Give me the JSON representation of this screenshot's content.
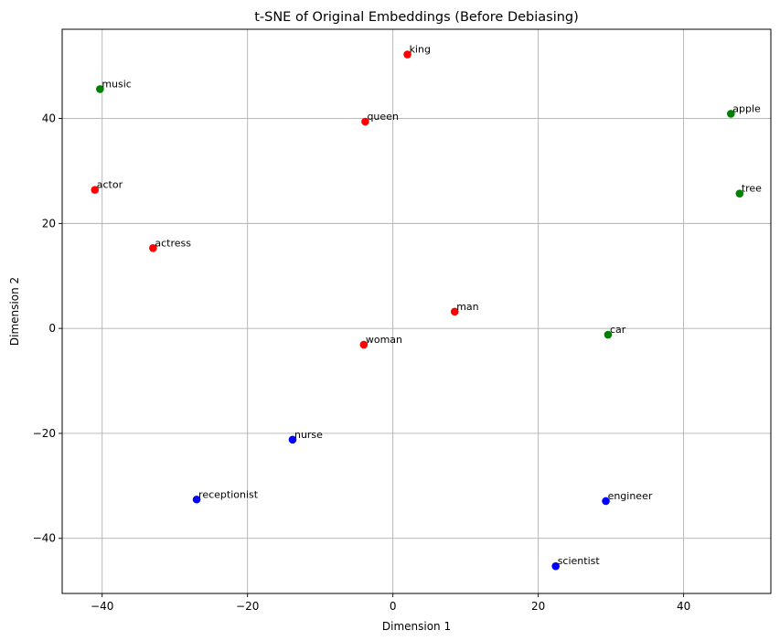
{
  "chart_data": {
    "type": "scatter",
    "title": "t-SNE of Original Embeddings (Before Debiasing)",
    "xlabel": "Dimension 1",
    "ylabel": "Dimension 2",
    "xlim": [
      -45.5,
      52
    ],
    "ylim": [
      -50.5,
      57
    ],
    "xticks": [
      -40,
      -20,
      0,
      20,
      40
    ],
    "yticks": [
      -40,
      -20,
      0,
      20,
      40
    ],
    "xtick_labels": [
      "−40",
      "−20",
      "0",
      "20",
      "40"
    ],
    "ytick_labels": [
      "−40",
      "−20",
      "0",
      "20",
      "40"
    ],
    "grid": true,
    "colors": {
      "red": "#ff0000",
      "green": "#008000",
      "blue": "#0000ff"
    },
    "points": [
      {
        "label": "king",
        "x": 2.0,
        "y": 52.2,
        "color": "red"
      },
      {
        "label": "queen",
        "x": -3.8,
        "y": 39.4,
        "color": "red"
      },
      {
        "label": "man",
        "x": 8.5,
        "y": 3.2,
        "color": "red"
      },
      {
        "label": "woman",
        "x": -4.0,
        "y": -3.1,
        "color": "red"
      },
      {
        "label": "actor",
        "x": -41.0,
        "y": 26.4,
        "color": "red"
      },
      {
        "label": "actress",
        "x": -33.0,
        "y": 15.3,
        "color": "red"
      },
      {
        "label": "music",
        "x": -40.3,
        "y": 45.6,
        "color": "green"
      },
      {
        "label": "apple",
        "x": 46.5,
        "y": 40.9,
        "color": "green"
      },
      {
        "label": "tree",
        "x": 47.7,
        "y": 25.7,
        "color": "green"
      },
      {
        "label": "car",
        "x": 29.6,
        "y": -1.2,
        "color": "green"
      },
      {
        "label": "nurse",
        "x": -13.8,
        "y": -21.2,
        "color": "blue"
      },
      {
        "label": "receptionist",
        "x": -27.0,
        "y": -32.6,
        "color": "blue"
      },
      {
        "label": "engineer",
        "x": 29.3,
        "y": -32.9,
        "color": "blue"
      },
      {
        "label": "scientist",
        "x": 22.4,
        "y": -45.3,
        "color": "blue"
      }
    ]
  }
}
